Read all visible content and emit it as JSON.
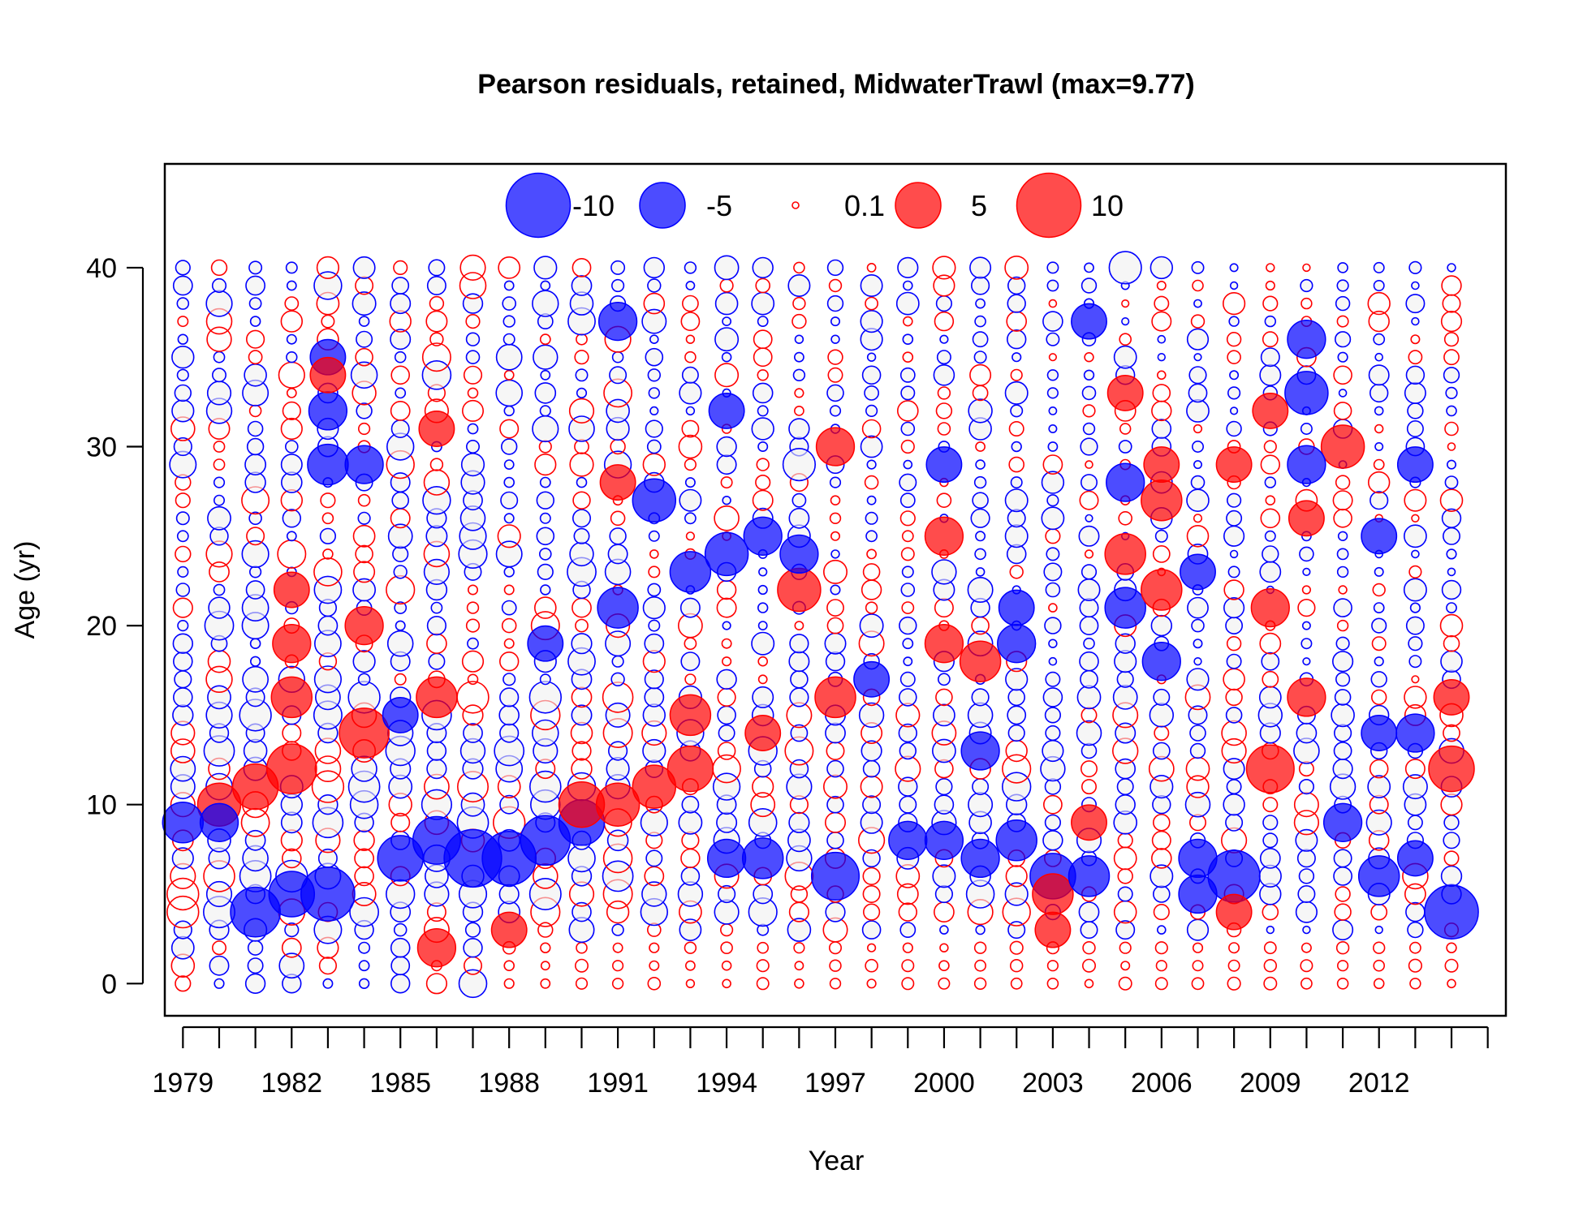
{
  "chart_data": {
    "type": "scatter",
    "subtype": "bubble",
    "title": "Pearson residuals, retained, MidwaterTrawl (max=9.77)",
    "xlabel": "Year",
    "ylabel": "Age (yr)",
    "xlim": [
      1978.5,
      2015.5
    ],
    "ylim": [
      -1.8,
      45.8
    ],
    "x_ticks": [
      1979,
      1982,
      1985,
      1988,
      1991,
      1994,
      1997,
      2000,
      2003,
      2006,
      2009,
      2012
    ],
    "x_minor_ticks_every": 1,
    "y_ticks": [
      0,
      10,
      20,
      30,
      40
    ],
    "grid": false,
    "colors": {
      "positive": "#ff0000",
      "negative": "#0000ff",
      "negative_fill": "#f0f0f0",
      "axis": "#000000"
    },
    "legend": {
      "placement": "top-center",
      "items": [
        {
          "label": "-10",
          "value": -10
        },
        {
          "label": "-5",
          "value": -5
        },
        {
          "label": "0.1",
          "value": 0.1
        },
        {
          "label": "5",
          "value": 5
        },
        {
          "label": "10",
          "value": 10
        }
      ]
    },
    "max_abs_residual": 9.77,
    "background_residual_pattern": "small mixed residuals (about 0-2) at every year for ages 0-40; dominant values listed in points",
    "points": [
      {
        "x": 1979,
        "y": 9,
        "r": -4.0
      },
      {
        "x": 1980,
        "y": 10,
        "r": 4.5
      },
      {
        "x": 1980,
        "y": 9,
        "r": -3.5
      },
      {
        "x": 1981,
        "y": 4,
        "r": -6.0
      },
      {
        "x": 1981,
        "y": 11,
        "r": 5.0
      },
      {
        "x": 1982,
        "y": 5,
        "r": -5.0
      },
      {
        "x": 1982,
        "y": 12,
        "r": 6.0
      },
      {
        "x": 1982,
        "y": 16,
        "r": 4.0
      },
      {
        "x": 1982,
        "y": 19,
        "r": 3.5
      },
      {
        "x": 1982,
        "y": 22,
        "r": 3.0
      },
      {
        "x": 1983,
        "y": 5,
        "r": -7.0
      },
      {
        "x": 1983,
        "y": 29,
        "r": -4.0
      },
      {
        "x": 1983,
        "y": 32,
        "r": -3.5
      },
      {
        "x": 1983,
        "y": 35,
        "r": -3.0
      },
      {
        "x": 1983,
        "y": 34,
        "r": 3.0
      },
      {
        "x": 1984,
        "y": 14,
        "r": 6.0
      },
      {
        "x": 1984,
        "y": 20,
        "r": 3.5
      },
      {
        "x": 1984,
        "y": 29,
        "r": -3.5
      },
      {
        "x": 1985,
        "y": 7,
        "r": -5.0
      },
      {
        "x": 1985,
        "y": 15,
        "r": -3.0
      },
      {
        "x": 1986,
        "y": 2,
        "r": 3.5
      },
      {
        "x": 1986,
        "y": 8,
        "r": -5.5
      },
      {
        "x": 1986,
        "y": 16,
        "r": 4.0
      },
      {
        "x": 1986,
        "y": 31,
        "r": 3.0
      },
      {
        "x": 1987,
        "y": 7,
        "r": -8.0
      },
      {
        "x": 1988,
        "y": 7,
        "r": -7.0
      },
      {
        "x": 1988,
        "y": 3,
        "r": 3.0
      },
      {
        "x": 1989,
        "y": 8,
        "r": -6.0
      },
      {
        "x": 1989,
        "y": 19,
        "r": -3.0
      },
      {
        "x": 1990,
        "y": 9,
        "r": -5.0
      },
      {
        "x": 1990,
        "y": 10,
        "r": 5.0
      },
      {
        "x": 1991,
        "y": 10,
        "r": 4.5
      },
      {
        "x": 1991,
        "y": 21,
        "r": -4.0
      },
      {
        "x": 1991,
        "y": 37,
        "r": -3.5
      },
      {
        "x": 1991,
        "y": 28,
        "r": 3.0
      },
      {
        "x": 1992,
        "y": 11,
        "r": 4.5
      },
      {
        "x": 1992,
        "y": 27,
        "r": -4.5
      },
      {
        "x": 1993,
        "y": 12,
        "r": 5.0
      },
      {
        "x": 1993,
        "y": 15,
        "r": 4.0
      },
      {
        "x": 1993,
        "y": 23,
        "r": -4.0
      },
      {
        "x": 1994,
        "y": 7,
        "r": -3.5
      },
      {
        "x": 1994,
        "y": 24,
        "r": -4.5
      },
      {
        "x": 1994,
        "y": 32,
        "r": -3.0
      },
      {
        "x": 1995,
        "y": 7,
        "r": -4.0
      },
      {
        "x": 1995,
        "y": 25,
        "r": -3.5
      },
      {
        "x": 1995,
        "y": 14,
        "r": 3.0
      },
      {
        "x": 1996,
        "y": 22,
        "r": 4.5
      },
      {
        "x": 1996,
        "y": 24,
        "r": -3.5
      },
      {
        "x": 1996,
        "y": 29,
        "r": -2.5
      },
      {
        "x": 1997,
        "y": 6,
        "r": -5.5
      },
      {
        "x": 1997,
        "y": 16,
        "r": 4.0
      },
      {
        "x": 1997,
        "y": 30,
        "r": 3.5
      },
      {
        "x": 1998,
        "y": 17,
        "r": -3.0
      },
      {
        "x": 1999,
        "y": 8,
        "r": -3.5
      },
      {
        "x": 2000,
        "y": 8,
        "r": -3.5
      },
      {
        "x": 2000,
        "y": 19,
        "r": 3.5
      },
      {
        "x": 2000,
        "y": 25,
        "r": 3.5
      },
      {
        "x": 2000,
        "y": 29,
        "r": -3.0
      },
      {
        "x": 2001,
        "y": 7,
        "r": -3.5
      },
      {
        "x": 2001,
        "y": 18,
        "r": 4.0
      },
      {
        "x": 2001,
        "y": 13,
        "r": -3.5
      },
      {
        "x": 2002,
        "y": 8,
        "r": -4.0
      },
      {
        "x": 2002,
        "y": 19,
        "r": -3.5
      },
      {
        "x": 2002,
        "y": 21,
        "r": -3.0
      },
      {
        "x": 2003,
        "y": 6,
        "r": -5.0
      },
      {
        "x": 2003,
        "y": 5,
        "r": 4.0
      },
      {
        "x": 2003,
        "y": 3,
        "r": 3.0
      },
      {
        "x": 2004,
        "y": 6,
        "r": -4.0
      },
      {
        "x": 2004,
        "y": 9,
        "r": 3.0
      },
      {
        "x": 2004,
        "y": 37,
        "r": -3.0
      },
      {
        "x": 2005,
        "y": 21,
        "r": -4.0
      },
      {
        "x": 2005,
        "y": 24,
        "r": 4.0
      },
      {
        "x": 2005,
        "y": 28,
        "r": -3.5
      },
      {
        "x": 2005,
        "y": 33,
        "r": 3.0
      },
      {
        "x": 2005,
        "y": 40,
        "r": -2.5
      },
      {
        "x": 2006,
        "y": 22,
        "r": 4.0
      },
      {
        "x": 2006,
        "y": 27,
        "r": 4.0
      },
      {
        "x": 2006,
        "y": 18,
        "r": -3.5
      },
      {
        "x": 2006,
        "y": 29,
        "r": 3.0
      },
      {
        "x": 2007,
        "y": 5,
        "r": -3.5
      },
      {
        "x": 2007,
        "y": 7,
        "r": -3.5
      },
      {
        "x": 2007,
        "y": 23,
        "r": -3.0
      },
      {
        "x": 2008,
        "y": 6,
        "r": -6.5
      },
      {
        "x": 2008,
        "y": 4,
        "r": 3.0
      },
      {
        "x": 2008,
        "y": 29,
        "r": 3.0
      },
      {
        "x": 2009,
        "y": 12,
        "r": 5.5
      },
      {
        "x": 2009,
        "y": 21,
        "r": 3.5
      },
      {
        "x": 2009,
        "y": 32,
        "r": 3.0
      },
      {
        "x": 2010,
        "y": 29,
        "r": -3.5
      },
      {
        "x": 2010,
        "y": 33,
        "r": -4.5
      },
      {
        "x": 2010,
        "y": 36,
        "r": -3.5
      },
      {
        "x": 2010,
        "y": 16,
        "r": 3.5
      },
      {
        "x": 2010,
        "y": 26,
        "r": 3.0
      },
      {
        "x": 2011,
        "y": 30,
        "r": 4.5
      },
      {
        "x": 2011,
        "y": 9,
        "r": -3.5
      },
      {
        "x": 2012,
        "y": 6,
        "r": -4.0
      },
      {
        "x": 2012,
        "y": 25,
        "r": -3.0
      },
      {
        "x": 2012,
        "y": 14,
        "r": -3.0
      },
      {
        "x": 2013,
        "y": 14,
        "r": -3.5
      },
      {
        "x": 2013,
        "y": 29,
        "r": -3.0
      },
      {
        "x": 2013,
        "y": 7,
        "r": -3.0
      },
      {
        "x": 2014,
        "y": 4,
        "r": -7.0
      },
      {
        "x": 2014,
        "y": 12,
        "r": 5.0
      },
      {
        "x": 2014,
        "y": 16,
        "r": 3.0
      }
    ]
  }
}
